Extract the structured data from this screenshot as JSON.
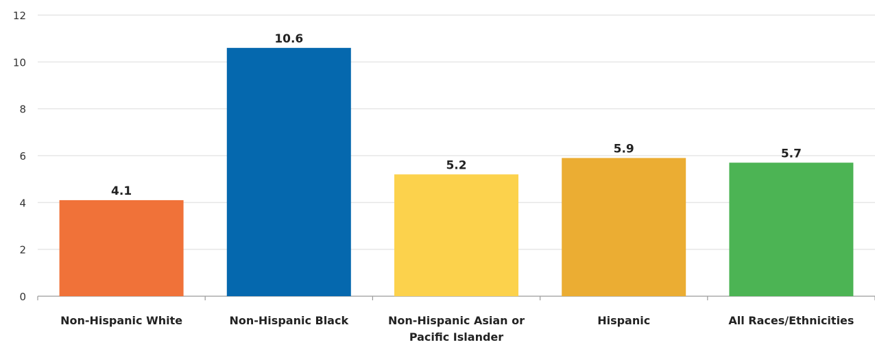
{
  "chart_data": {
    "type": "bar",
    "categories": [
      "Non-Hispanic White",
      "Non-Hispanic Black",
      "Non-Hispanic Asian or Pacific Islander",
      "Hispanic",
      "All Races/Ethnicities"
    ],
    "category_label_lines": [
      [
        "Non-Hispanic White"
      ],
      [
        "Non-Hispanic Black"
      ],
      [
        "Non-Hispanic Asian or",
        "Pacific Islander"
      ],
      [
        "Hispanic"
      ],
      [
        "All Races/Ethnicities"
      ]
    ],
    "values": [
      4.1,
      10.6,
      5.2,
      5.9,
      5.7
    ],
    "value_labels": [
      "4.1",
      "10.6",
      "5.2",
      "5.9",
      "5.7"
    ],
    "colors": [
      "#F07239",
      "#0568AE",
      "#FCD24C",
      "#EBAD33",
      "#4CB454"
    ],
    "ylim": [
      0,
      12
    ],
    "yticks": [
      0,
      2,
      4,
      6,
      8,
      10,
      12
    ],
    "grid": true,
    "legend": "none",
    "title": "",
    "xlabel": "",
    "ylabel": ""
  }
}
